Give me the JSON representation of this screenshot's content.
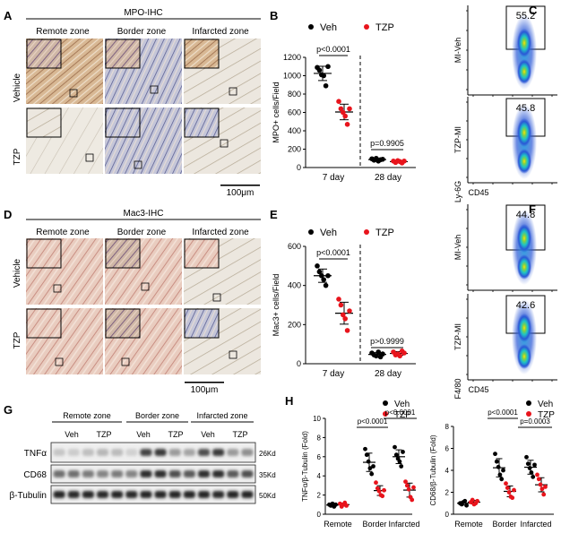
{
  "panel_letters": {
    "A": "A",
    "B": "B",
    "C": "C",
    "D": "D",
    "E": "E",
    "F": "F",
    "G": "G",
    "H": "H"
  },
  "panelA": {
    "title": "MPO-IHC",
    "zones": [
      "Remote zone",
      "Border zone",
      "Infarcted zone"
    ],
    "rows": [
      "Vehicle",
      "TZP"
    ],
    "scale_bar": "100μm"
  },
  "panelD": {
    "title": "Mac3-IHC",
    "zones": [
      "Remote zone",
      "Border zone",
      "Infarcted zone"
    ],
    "rows": [
      "Vehicle",
      "TZP"
    ],
    "scale_bar": "100μm"
  },
  "flowC": {
    "rows": [
      "MI-Veh",
      "TZP-MI"
    ],
    "percent": [
      "55.2",
      "45.8"
    ],
    "ylabel": "Ly-6G",
    "xlabel": "CD45"
  },
  "flowF": {
    "rows": [
      "MI-Veh",
      "TZP-MI"
    ],
    "percent": [
      "44.8",
      "42.6"
    ],
    "ylabel": "F4/80",
    "xlabel": "CD45"
  },
  "blotG": {
    "groups": [
      "Remote zone",
      "Border zone",
      "Infarcted zone"
    ],
    "lanes": [
      "Veh",
      "TZP",
      "Veh",
      "TZP",
      "Veh",
      "TZP"
    ],
    "proteins": [
      "TNFα",
      "CD68",
      "β-Tubulin"
    ],
    "sizes": [
      "26Kd",
      "35Kd",
      "50Kd"
    ]
  },
  "colors": {
    "veh": "#000000",
    "tzp": "#e8141c"
  },
  "chart_data": [
    {
      "id": "B",
      "type": "scatter",
      "ylabel": "MPO+ cells/Field",
      "ylim": [
        0,
        1200
      ],
      "yticks": [
        "0",
        "200",
        "400",
        "600",
        "800",
        "1000",
        "1200"
      ],
      "categories": [
        "7 day",
        "28 day"
      ],
      "legend": [
        "Veh",
        "TZP"
      ],
      "stats": [
        "p<0.0001",
        "p=0.9905"
      ],
      "series": [
        {
          "name": "Veh",
          "groups": [
            [
              1090,
              1060,
              1010,
              1000,
              890,
              1100
            ],
            [
              95,
              80,
              100,
              70,
              85,
              90
            ]
          ]
        },
        {
          "name": "TZP",
          "groups": [
            [
              720,
              640,
              600,
              560,
              470,
              640
            ],
            [
              70,
              55,
              75,
              65,
              50,
              70
            ]
          ]
        }
      ]
    },
    {
      "id": "E",
      "type": "scatter",
      "ylabel": "Mac3+ cells/Field",
      "ylim": [
        0,
        600
      ],
      "yticks": [
        "0",
        "200",
        "400",
        "600"
      ],
      "categories": [
        "7 day",
        "28 day"
      ],
      "legend": [
        "Veh",
        "TZP"
      ],
      "stats": [
        "p<0.0001",
        "p>0.9999"
      ],
      "series": [
        {
          "name": "Veh",
          "groups": [
            [
              500,
              470,
              450,
              430,
              400,
              450
            ],
            [
              55,
              45,
              40,
              60,
              35,
              50
            ]
          ]
        },
        {
          "name": "TZP",
          "groups": [
            [
              330,
              300,
              250,
              230,
              170,
              270
            ],
            [
              60,
              45,
              50,
              40,
              65,
              55
            ]
          ]
        }
      ]
    },
    {
      "id": "H1",
      "type": "scatter",
      "ylabel": "TNFα/β-Tubulin (Fold)",
      "ylim": [
        0,
        10
      ],
      "yticks": [
        "0",
        "2",
        "4",
        "6",
        "8",
        "10"
      ],
      "categories": [
        "Remote",
        "Border",
        "Infarcted"
      ],
      "legend": [
        "Veh",
        "TZP"
      ],
      "stats": [
        "p<0.0001",
        "p<0.0001"
      ],
      "series": [
        {
          "name": "Veh",
          "groups": [
            [
              1.0,
              0.9,
              1.1,
              0.8,
              1.0
            ],
            [
              6.8,
              6.2,
              5.5,
              4.8,
              4.2,
              5.0
            ],
            [
              7.0,
              6.2,
              5.8,
              5.5,
              5.0,
              6.5
            ]
          ]
        },
        {
          "name": "TZP",
          "groups": [
            [
              1.1,
              0.8,
              1.0,
              1.2,
              0.9
            ],
            [
              3.3,
              2.7,
              2.4,
              2.0,
              1.9,
              2.5
            ],
            [
              3.4,
              3.0,
              2.6,
              1.8,
              1.5,
              2.8
            ]
          ]
        }
      ]
    },
    {
      "id": "H2",
      "type": "scatter",
      "ylabel": "CD68/β-Tubulin (Fold)",
      "ylim": [
        0,
        8
      ],
      "yticks": [
        "0",
        "2",
        "4",
        "6",
        "8"
      ],
      "categories": [
        "Remote",
        "Border",
        "Infarcted"
      ],
      "legend": [
        "Veh",
        "TZP"
      ],
      "stats": [
        "p<0.0001",
        "p=0.0003"
      ],
      "series": [
        {
          "name": "Veh",
          "groups": [
            [
              1.0,
              0.9,
              1.1,
              1.2,
              0.8
            ],
            [
              5.5,
              4.8,
              4.3,
              3.6,
              3.2,
              4.0
            ],
            [
              5.2,
              4.6,
              4.2,
              3.8,
              3.4,
              4.5
            ]
          ]
        },
        {
          "name": "TZP",
          "groups": [
            [
              1.1,
              1.3,
              0.9,
              1.0,
              1.2
            ],
            [
              2.8,
              2.4,
              2.0,
              1.6,
              1.5,
              2.2
            ],
            [
              3.6,
              3.2,
              2.7,
              2.3,
              1.8,
              2.5
            ]
          ]
        }
      ]
    }
  ]
}
